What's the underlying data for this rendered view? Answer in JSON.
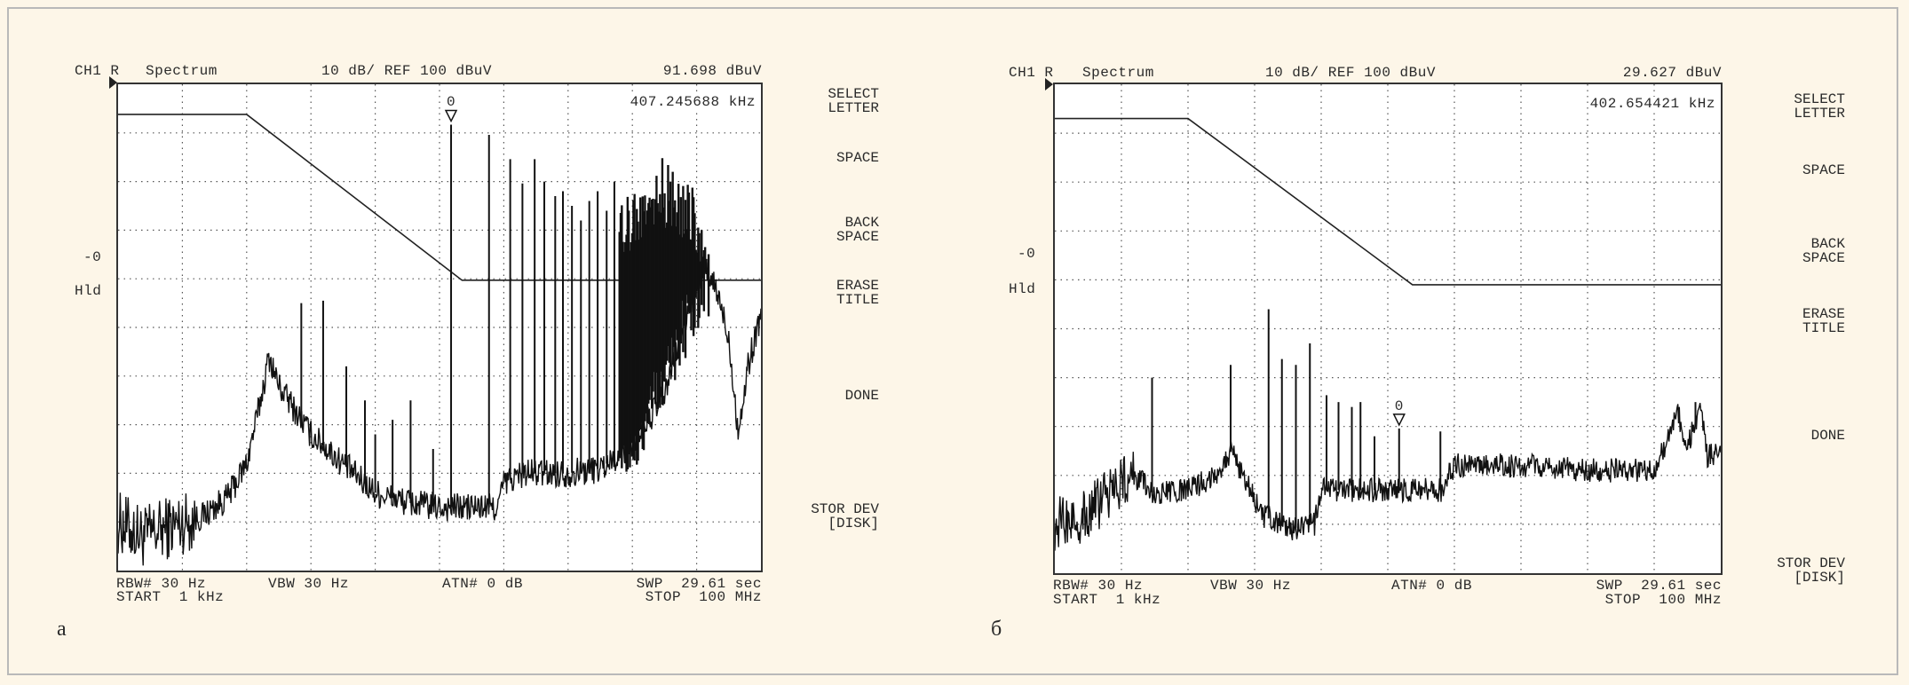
{
  "panels": [
    {
      "label": "а",
      "header": {
        "channel": "CH1 R",
        "mode": "Spectrum",
        "scale": "10 dB/ REF 100 dBuV",
        "marker_level": "91.698 dBuV"
      },
      "marker_freq": "407.245688 kHz",
      "marker_label": "0",
      "left_labels": {
        "ref": "-0",
        "hold": "Hld"
      },
      "footer": {
        "rbw": "RBW# 30 Hz",
        "vbw": "VBW 30 Hz",
        "atn": "ATN# 0 dB",
        "swp": "SWP  29.61 sec",
        "start": "START  1 kHz",
        "stop": "STOP  100 MHz"
      },
      "softkeys": [
        "SELECT\nLETTER",
        "SPACE",
        "BACK\nSPACE",
        "ERASE\nTITLE",
        "DONE",
        "STOR DEV\n[DISK]"
      ]
    },
    {
      "label": "б",
      "header": {
        "channel": "CH1 R",
        "mode": "Spectrum",
        "scale": "10 dB/ REF 100 dBuV",
        "marker_level": "29.627 dBuV"
      },
      "marker_freq": "402.654421 kHz",
      "marker_label": "0",
      "left_labels": {
        "ref": "-0",
        "hold": "Hld"
      },
      "footer": {
        "rbw": "RBW# 30 Hz",
        "vbw": "VBW 30 Hz",
        "atn": "ATN# 0 dB",
        "swp": "SWP  29.61 sec",
        "start": "START  1 kHz",
        "stop": "STOP  100 MHz"
      },
      "softkeys": [
        "SELECT\nLETTER",
        "SPACE",
        "BACK\nSPACE",
        "ERASE\nTITLE",
        "DONE",
        "STOR DEV\n[DISK]"
      ]
    }
  ],
  "chart_data": [
    {
      "type": "line",
      "title": "CH1 R Spectrum (а)",
      "xlabel": "frequency (divisions, 1 kHz – 100 MHz)",
      "ylabel": "dBuV",
      "xlim": [
        0,
        10
      ],
      "ylim": [
        0,
        100
      ],
      "grid": true,
      "limit_line": [
        [
          0,
          93.8
        ],
        [
          2.0,
          93.8
        ],
        [
          5.35,
          59.7
        ],
        [
          10,
          59.7
        ]
      ],
      "marker": {
        "x": 5.18,
        "y": 91.7
      },
      "noise_amplitude": 3,
      "baseline": [
        [
          0,
          10
        ],
        [
          0.4,
          7
        ],
        [
          0.8,
          9
        ],
        [
          1.3,
          11
        ],
        [
          1.7,
          15
        ],
        [
          2.0,
          22
        ],
        [
          2.2,
          34
        ],
        [
          2.35,
          44
        ],
        [
          2.5,
          38
        ],
        [
          3.0,
          28
        ],
        [
          3.5,
          22
        ],
        [
          4.0,
          16
        ],
        [
          4.5,
          14
        ],
        [
          5.0,
          13
        ],
        [
          5.6,
          13
        ],
        [
          5.9,
          13
        ],
        [
          6.0,
          18
        ],
        [
          6.3,
          20
        ],
        [
          7.0,
          20
        ],
        [
          7.5,
          21
        ],
        [
          8.0,
          26
        ],
        [
          8.5,
          36
        ],
        [
          8.9,
          55
        ],
        [
          9.1,
          62
        ],
        [
          9.3,
          58
        ],
        [
          9.5,
          48
        ],
        [
          9.65,
          28
        ],
        [
          9.8,
          42
        ],
        [
          10,
          53
        ]
      ],
      "spikes": [
        [
          2.85,
          55
        ],
        [
          3.19,
          55.5
        ],
        [
          3.55,
          42
        ],
        [
          3.84,
          35
        ],
        [
          4.0,
          28
        ],
        [
          4.27,
          31
        ],
        [
          4.55,
          35
        ],
        [
          4.9,
          25
        ],
        [
          5.18,
          91.7
        ],
        [
          5.77,
          89.6
        ],
        [
          6.1,
          84.6
        ],
        [
          6.29,
          79.6
        ],
        [
          6.48,
          84.6
        ],
        [
          6.63,
          80
        ],
        [
          6.8,
          77
        ],
        [
          6.92,
          78
        ],
        [
          7.06,
          75
        ],
        [
          7.2,
          72
        ],
        [
          7.33,
          76
        ],
        [
          7.46,
          78
        ],
        [
          7.6,
          74
        ],
        [
          7.72,
          80
        ]
      ],
      "dense_band": {
        "x_start": 7.8,
        "x_end": 9.2,
        "top": [
          [
            7.8,
            76
          ],
          [
            8.1,
            80
          ],
          [
            8.3,
            86
          ],
          [
            8.6,
            85
          ],
          [
            8.9,
            80
          ],
          [
            9.2,
            70
          ]
        ],
        "floor": [
          [
            7.8,
            22
          ],
          [
            8.1,
            26
          ],
          [
            8.4,
            38
          ],
          [
            8.8,
            50
          ],
          [
            9.2,
            58
          ]
        ]
      }
    },
    {
      "type": "line",
      "title": "CH1 R Spectrum (б)",
      "xlabel": "frequency (divisions, 1 kHz – 100 MHz)",
      "ylabel": "dBuV",
      "xlim": [
        0,
        10
      ],
      "ylim": [
        0,
        100
      ],
      "grid": true,
      "limit_line": [
        [
          0,
          93.0
        ],
        [
          2.0,
          93.0
        ],
        [
          5.37,
          59.0
        ],
        [
          10,
          59.0
        ]
      ],
      "marker": {
        "x": 5.17,
        "y": 29.6
      },
      "noise_amplitude": 2.5,
      "baseline": [
        [
          0,
          10
        ],
        [
          0.5,
          12
        ],
        [
          0.9,
          18
        ],
        [
          1.2,
          20
        ],
        [
          1.5,
          16
        ],
        [
          2.0,
          17
        ],
        [
          2.4,
          20
        ],
        [
          2.65,
          25
        ],
        [
          2.9,
          18
        ],
        [
          3.1,
          12
        ],
        [
          3.5,
          9
        ],
        [
          3.9,
          10
        ],
        [
          4.0,
          17
        ],
        [
          5.0,
          17
        ],
        [
          5.8,
          17
        ],
        [
          6.0,
          22
        ],
        [
          7.0,
          22
        ],
        [
          8.0,
          21
        ],
        [
          9.0,
          21
        ],
        [
          9.2,
          27
        ],
        [
          9.35,
          33
        ],
        [
          9.5,
          26
        ],
        [
          9.7,
          34
        ],
        [
          9.8,
          24
        ],
        [
          10,
          24
        ]
      ],
      "spikes": [
        [
          1.46,
          40
        ],
        [
          2.64,
          42.6
        ],
        [
          3.21,
          54
        ],
        [
          3.41,
          43.8
        ],
        [
          3.62,
          42.6
        ],
        [
          3.83,
          47
        ],
        [
          4.08,
          36.4
        ],
        [
          4.26,
          35
        ],
        [
          4.46,
          34
        ],
        [
          4.59,
          35
        ],
        [
          4.8,
          28
        ],
        [
          5.17,
          29.6
        ],
        [
          5.79,
          29
        ],
        [
          9.62,
          35
        ]
      ],
      "dense_band": null
    }
  ]
}
